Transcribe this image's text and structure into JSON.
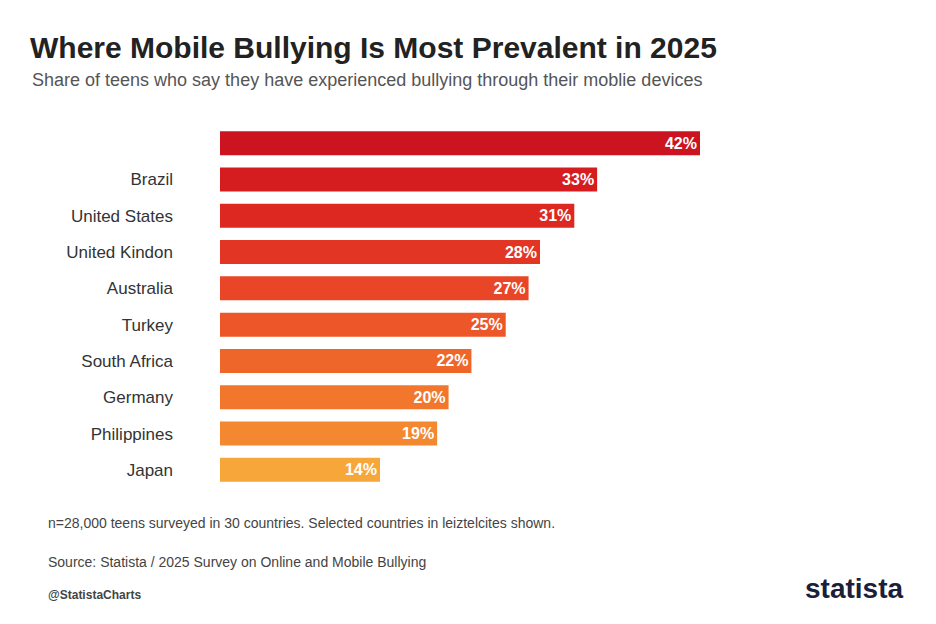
{
  "chart_data": {
    "type": "bar",
    "orientation": "horizontal",
    "title": "Where Mobile Bullying Is Most Prevalent in 2025",
    "subtitle": "Share of teens who say they have experienced bullying through their moblie devices",
    "categories": [
      null,
      "Brazil",
      "United States",
      "United Kindon",
      "Australia",
      "Turkey",
      "South Africa",
      "Germany",
      "Philippines",
      "Japan"
    ],
    "values": [
      42,
      33,
      31,
      28,
      27,
      25,
      22,
      20,
      19,
      14
    ],
    "value_labels": [
      "42%",
      "33%",
      "31%",
      "28%",
      "27%",
      "25%",
      "22%",
      "20%",
      "19%",
      "14%"
    ],
    "colors": [
      "#cc1420",
      "#d51d1f",
      "#dd2822",
      "#e23524",
      "#e84626",
      "#ec5628",
      "#ef662a",
      "#f2772d",
      "#f48830",
      "#f7a63a"
    ],
    "xlim": [
      0,
      42
    ],
    "grid": false,
    "tick_labels": "y",
    "data_labels": true,
    "note": "n=28,000 teens surveyed in 30 countries. Selected countries in leiztelcites shown.",
    "source": "Source: Statista / 2025 Survey on Online and Mobile Bullying",
    "credit": "@StatistaCharts",
    "logo": "statista"
  }
}
